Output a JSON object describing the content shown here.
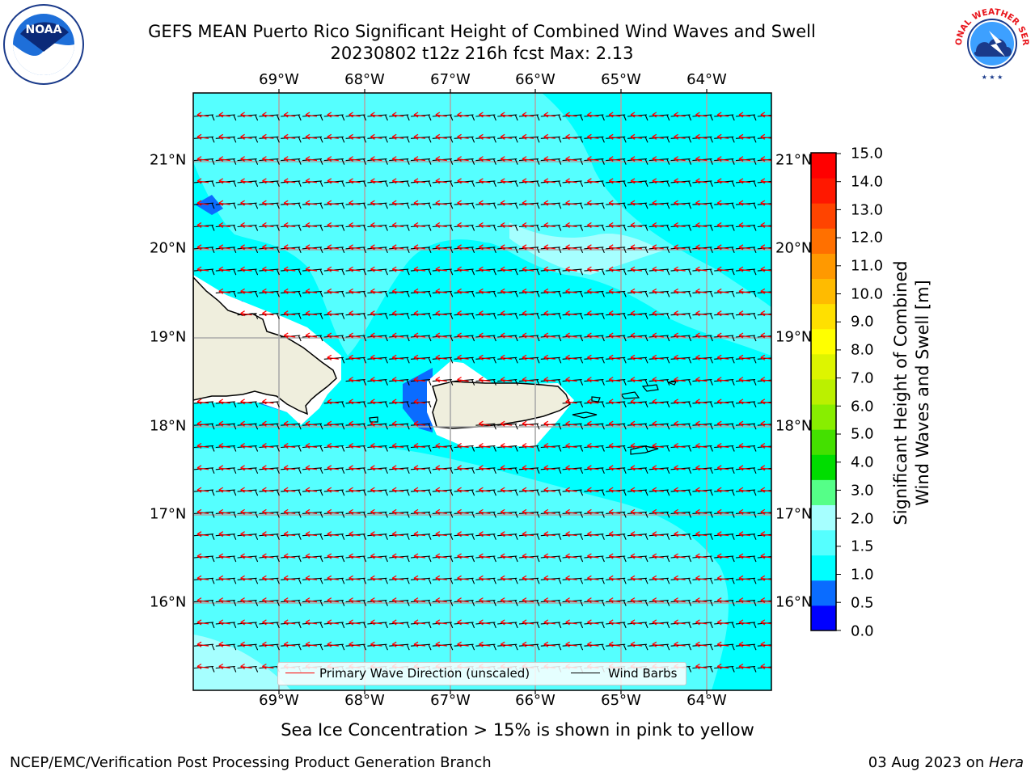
{
  "title_line1": "GEFS MEAN Puerto Rico Significant Height of Combined Wind Waves and Swell",
  "title_line2": "20230802 t12z 216h fcst   Max: 2.13",
  "longitude_labels": [
    "69°W",
    "68°W",
    "67°W",
    "66°W",
    "65°W",
    "64°W"
  ],
  "latitude_labels": [
    "21°N",
    "20°N",
    "19°N",
    "18°N",
    "17°N",
    "16°N"
  ],
  "colorbar": {
    "label_line1": "Significant Height of Combined",
    "label_line2": "Wind Waves and Swell [m]",
    "ticks": [
      "15.0",
      "14.0",
      "13.0",
      "12.0",
      "11.0",
      "10.0",
      "9.0",
      "8.0",
      "7.0",
      "6.0",
      "5.0",
      "4.0",
      "3.0",
      "2.0",
      "1.5",
      "1.0",
      "0.5",
      "0.0"
    ],
    "colors": [
      "#0000ff",
      "#0a6cff",
      "#00ffff",
      "#55ffff",
      "#a6ffff",
      "#55ff88",
      "#00dd00",
      "#44e000",
      "#88ee00",
      "#bbf000",
      "#ddf500",
      "#ffff00",
      "#ffe000",
      "#ffbb00",
      "#ff9900",
      "#ff7000",
      "#ff4400",
      "#ff1800",
      "#ff0000"
    ]
  },
  "legend": {
    "wave_direction": "Primary Wave Direction (unscaled)",
    "wind_barbs": "Wind Barbs",
    "wave_color": "#ff0000",
    "barb_color": "#000000"
  },
  "note": "Sea Ice Concentration > 15% is shown in pink to yellow",
  "footer_left": "NCEP/EMC/Verification Post Processing Product Generation Branch",
  "footer_right_prefix": "03 Aug 2023 on ",
  "footer_right_host": "Hera",
  "logos": {
    "left": "noaa-logo",
    "right": "nws-logo",
    "right_text": "NATIONAL WEATHER SERVICE"
  }
}
